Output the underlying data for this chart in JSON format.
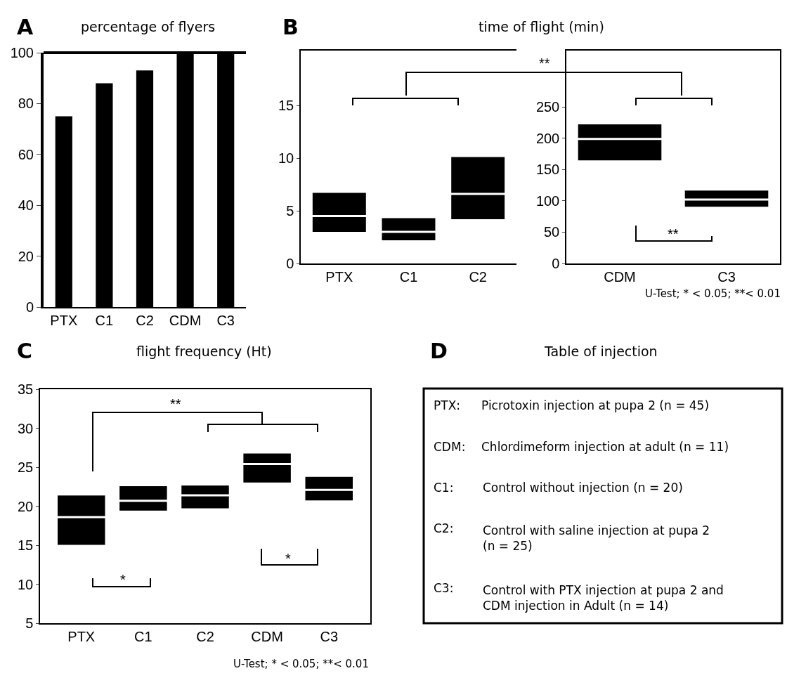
{
  "chart_data": [
    {
      "type": "bar",
      "title": "percentage of flyers",
      "categories": [
        "PTX",
        "C1",
        "C2",
        "CDM",
        "C3"
      ],
      "values": [
        75,
        88,
        93,
        100,
        100
      ],
      "color": "#000000",
      "ylim": [
        0,
        100
      ],
      "yticks": [
        0,
        20,
        40,
        60,
        80,
        100
      ],
      "annotations": [
        "A"
      ]
    },
    {
      "type": "box",
      "title": "time of flight (min)",
      "categories": [
        "PTX",
        "C1",
        "C2"
      ],
      "color": "#000000",
      "ylim": [
        0,
        20.2
      ],
      "yticks": [
        0,
        5,
        10,
        15
      ],
      "boxes": [
        {
          "q1": 2.9,
          "median": 4.5,
          "q3": 6.8
        },
        {
          "q1": 2.1,
          "median": 3.0,
          "q3": 4.4
        },
        {
          "q1": 4.1,
          "median": 6.6,
          "q3": 10.2
        }
      ],
      "annotations": [
        "B",
        "**",
        "U-Test; * < 0.05; **< 0.01"
      ]
    },
    {
      "type": "box",
      "categories": [
        "CDM",
        "C3"
      ],
      "color": "#000000",
      "ylim": [
        0,
        340
      ],
      "yticks": [
        0,
        50,
        100,
        150,
        200,
        250
      ],
      "boxes": [
        {
          "q1": 163,
          "median": 199,
          "q3": 224
        },
        {
          "q1": 89,
          "median": 102,
          "q3": 118
        }
      ],
      "annotations": [
        "**"
      ]
    },
    {
      "type": "box",
      "title": "flight frequency (Ht)",
      "categories": [
        "PTX",
        "C1",
        "C2",
        "CDM",
        "C3"
      ],
      "color": "#000000",
      "ylim": [
        5,
        35
      ],
      "yticks": [
        5,
        10,
        15,
        20,
        25,
        30,
        35
      ],
      "boxes": [
        {
          "q1": 14.9,
          "median": 18.6,
          "q3": 21.5
        },
        {
          "q1": 19.3,
          "median": 20.7,
          "q3": 22.7
        },
        {
          "q1": 19.6,
          "median": 21.4,
          "q3": 22.8
        },
        {
          "q1": 22.9,
          "median": 25.4,
          "q3": 26.9
        },
        {
          "q1": 20.6,
          "median": 22.1,
          "q3": 23.9
        }
      ],
      "annotations": [
        "C",
        "**",
        "*",
        "*",
        "U-Test; * < 0.05; **< 0.01"
      ]
    },
    {
      "type": "other",
      "title": "Table of injection",
      "annotations": [
        "D",
        "PTX:",
        "Picrotoxin injection at pupa 2 (n = 45)",
        "CDM:",
        "Chlordimeform injection at adult (n = 11)",
        "C1:",
        "Control without injection (n = 20)",
        "C2:",
        "Control with saline injection at pupa 2\n(n = 25)",
        "C3:",
        "Control with PTX injection at pupa 2 and\nCDM injection in Adult (n = 14)"
      ]
    }
  ]
}
